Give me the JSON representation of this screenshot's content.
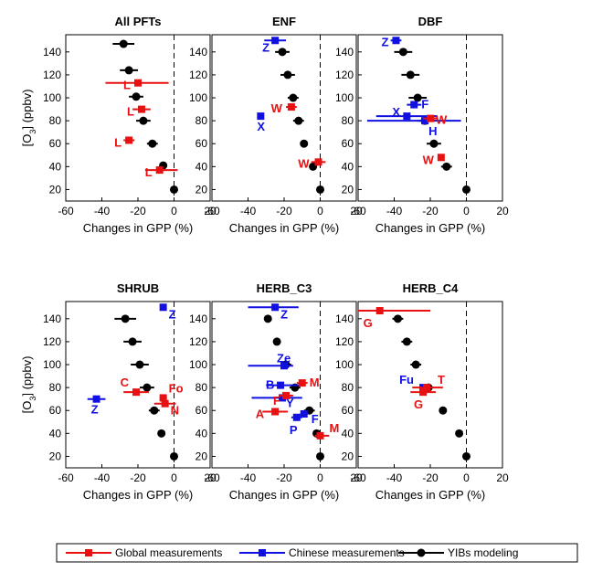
{
  "chart_data": {
    "type": "scatter",
    "x_ticks": [
      "-60",
      "-40",
      "-20",
      "0",
      "20"
    ],
    "y_ticks": [
      "20",
      "40",
      "60",
      "80",
      "100",
      "120",
      "140"
    ],
    "xlim": [
      -60,
      20
    ],
    "ylim": [
      10,
      155
    ],
    "xlabel": "Changes in GPP (%)",
    "ylabel": "[O3] (ppbv)",
    "legend": {
      "placement": "bottom",
      "entries": [
        {
          "label": "Global measurements",
          "color": "#e81010"
        },
        {
          "label": "Chinese measurements",
          "color": "#1010e0"
        },
        {
          "label": "YIBs modeling",
          "color": "#000000"
        }
      ]
    },
    "panels": [
      {
        "title": "All PFTs",
        "yibs": [
          {
            "x": -28,
            "xerr": 6,
            "y": 147
          },
          {
            "x": -25,
            "xerr": 5,
            "y": 124
          },
          {
            "x": -21,
            "xerr": 4,
            "y": 101
          },
          {
            "x": -17,
            "xerr": 4,
            "y": 80
          },
          {
            "x": -12,
            "xerr": 3,
            "y": 60
          },
          {
            "x": -6,
            "xerr": 2,
            "y": 41
          },
          {
            "x": 0,
            "xerr": 0,
            "y": 20
          }
        ],
        "global": [
          {
            "x": -20,
            "lo": -38,
            "hi": -3,
            "y": 113,
            "label": "L"
          },
          {
            "x": -18,
            "lo": -23,
            "hi": -13,
            "y": 90,
            "label": "L"
          },
          {
            "x": -25,
            "lo": -28,
            "hi": -22,
            "y": 63,
            "label": "L"
          },
          {
            "x": -8,
            "lo": -16,
            "hi": 2,
            "y": 37,
            "label": "L"
          }
        ],
        "chinese": []
      },
      {
        "title": "ENF",
        "yibs": [
          {
            "x": -21,
            "xerr": 4,
            "y": 140
          },
          {
            "x": -18,
            "xerr": 4,
            "y": 120
          },
          {
            "x": -15,
            "xerr": 3,
            "y": 100
          },
          {
            "x": -12,
            "xerr": 3,
            "y": 80
          },
          {
            "x": -9,
            "xerr": 2,
            "y": 60
          },
          {
            "x": -4,
            "xerr": 2,
            "y": 40
          },
          {
            "x": 0,
            "xerr": 0,
            "y": 20
          }
        ],
        "global": [
          {
            "x": -16,
            "lo": -19,
            "hi": -13,
            "y": 92,
            "label": "W"
          },
          {
            "x": -1,
            "lo": -5,
            "hi": 3,
            "y": 44,
            "label": "W"
          }
        ],
        "chinese": [
          {
            "x": -25,
            "lo": -31,
            "hi": -19,
            "y": 150,
            "label": "Z"
          },
          {
            "x": -33,
            "lo": -34,
            "hi": -32,
            "y": 84,
            "label": "X"
          }
        ]
      },
      {
        "title": "DBF",
        "yibs": [
          {
            "x": -35,
            "xerr": 5,
            "y": 140
          },
          {
            "x": -31,
            "xerr": 5,
            "y": 120
          },
          {
            "x": -27,
            "xerr": 5,
            "y": 100
          },
          {
            "x": -23,
            "xerr": 4,
            "y": 80
          },
          {
            "x": -18,
            "xerr": 4,
            "y": 60
          },
          {
            "x": -11,
            "xerr": 3,
            "y": 40
          },
          {
            "x": 0,
            "xerr": 0,
            "y": 20
          }
        ],
        "global": [
          {
            "x": -20,
            "lo": -24,
            "hi": -16,
            "y": 82,
            "label": "W"
          },
          {
            "x": -14,
            "lo": -15,
            "hi": -13,
            "y": 48,
            "label": "W"
          }
        ],
        "chinese": [
          {
            "x": -39,
            "lo": -42,
            "hi": -36,
            "y": 150,
            "label": "Z"
          },
          {
            "x": -29,
            "lo": -33,
            "hi": -25,
            "y": 94,
            "label": "F"
          },
          {
            "x": -33,
            "lo": -50,
            "hi": -16,
            "y": 84,
            "label": "X"
          },
          {
            "x": -23,
            "lo": -55,
            "hi": -3,
            "y": 80,
            "label": "H"
          }
        ]
      },
      {
        "title": "SHRUB",
        "yibs": [
          {
            "x": -27,
            "xerr": 6,
            "y": 140
          },
          {
            "x": -23,
            "xerr": 5,
            "y": 120
          },
          {
            "x": -19,
            "xerr": 5,
            "y": 100
          },
          {
            "x": -15,
            "xerr": 4,
            "y": 80
          },
          {
            "x": -11,
            "xerr": 3,
            "y": 60
          },
          {
            "x": -7,
            "xerr": 2,
            "y": 40
          },
          {
            "x": 0,
            "xerr": 0,
            "y": 20
          }
        ],
        "global": [
          {
            "x": -21,
            "lo": -28,
            "hi": -14,
            "y": 76,
            "label": "C"
          },
          {
            "x": -6,
            "lo": -8,
            "hi": -4,
            "y": 71,
            "label": "Fo"
          },
          {
            "x": -5,
            "lo": -11,
            "hi": 1,
            "y": 66,
            "label": "N"
          }
        ],
        "chinese": [
          {
            "x": -6,
            "lo": -6,
            "hi": -6,
            "y": 150,
            "label": "Z"
          },
          {
            "x": -43,
            "lo": -48,
            "hi": -38,
            "y": 70,
            "label": "Z"
          }
        ]
      },
      {
        "title": "HERB_C3",
        "yibs": [
          {
            "x": -29,
            "xerr": 2,
            "y": 140
          },
          {
            "x": -24,
            "xerr": 2,
            "y": 120
          },
          {
            "x": -19,
            "xerr": 3,
            "y": 100
          },
          {
            "x": -14,
            "xerr": 3,
            "y": 80
          },
          {
            "x": -6,
            "xerr": 3,
            "y": 60
          },
          {
            "x": -2,
            "xerr": 2,
            "y": 40
          },
          {
            "x": 0,
            "xerr": 0,
            "y": 20
          }
        ],
        "global": [
          {
            "x": -10,
            "lo": -13,
            "hi": -7,
            "y": 84,
            "label": "M"
          },
          {
            "x": -19,
            "lo": -23,
            "hi": -15,
            "y": 73,
            "label": "F"
          },
          {
            "x": -25,
            "lo": -32,
            "hi": -18,
            "y": 59,
            "label": "A"
          },
          {
            "x": 0,
            "lo": -3,
            "hi": 5,
            "y": 38,
            "label": "M"
          }
        ],
        "chinese": [
          {
            "x": -25,
            "lo": -40,
            "hi": -12,
            "y": 150,
            "label": "Z"
          },
          {
            "x": -20,
            "lo": -40,
            "hi": -15,
            "y": 99,
            "label": "Ze"
          },
          {
            "x": -22,
            "lo": -30,
            "hi": -10,
            "y": 82,
            "label": "B"
          },
          {
            "x": -21,
            "lo": -38,
            "hi": -10,
            "y": 71,
            "label": "Y"
          },
          {
            "x": -13,
            "lo": -16,
            "hi": -10,
            "y": 54,
            "label": "P"
          },
          {
            "x": -9,
            "lo": -11,
            "hi": -7,
            "y": 57,
            "label": "F"
          }
        ]
      },
      {
        "title": "HERB_C4",
        "yibs": [
          {
            "x": -38,
            "xerr": 3,
            "y": 140
          },
          {
            "x": -33,
            "xerr": 3,
            "y": 120
          },
          {
            "x": -28,
            "xerr": 3,
            "y": 100
          },
          {
            "x": -21,
            "xerr": 3,
            "y": 80
          },
          {
            "x": -13,
            "xerr": 2,
            "y": 60
          },
          {
            "x": -4,
            "xerr": 1,
            "y": 40
          },
          {
            "x": 0,
            "xerr": 0,
            "y": 20
          }
        ],
        "global": [
          {
            "x": -48,
            "lo": -62,
            "hi": -20,
            "y": 147,
            "label": "G"
          },
          {
            "x": -22,
            "lo": -30,
            "hi": -13,
            "y": 80,
            "label": "T"
          },
          {
            "x": -24,
            "lo": -31,
            "hi": -17,
            "y": 76,
            "label": "G"
          }
        ],
        "chinese": [
          {
            "x": -24,
            "lo": -26,
            "hi": -22,
            "y": 80,
            "label": "Fu"
          }
        ]
      }
    ]
  }
}
